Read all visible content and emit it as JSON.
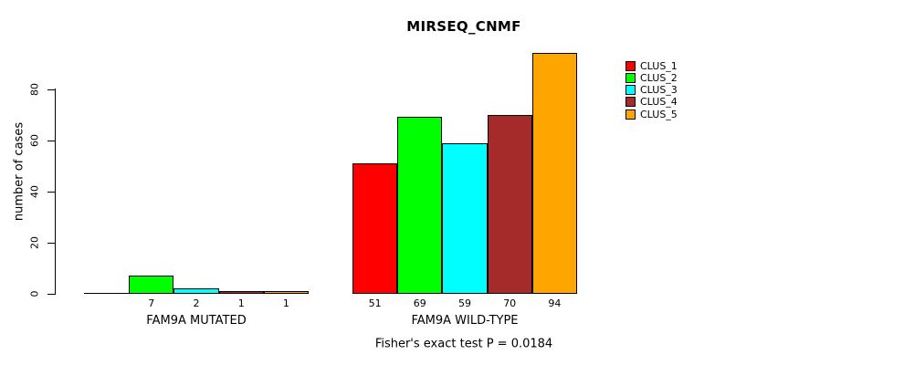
{
  "chart_data": {
    "type": "bar",
    "title": "MIRSEQ_CNMF",
    "subtitle": "Fisher's exact test P = 0.0184",
    "xlabel": "",
    "ylabel": "number of cases",
    "ylim": [
      0,
      94
    ],
    "yticks": [
      0,
      20,
      40,
      60,
      80
    ],
    "grid": false,
    "legend_position": "top-right",
    "categories": [
      "FAM9A MUTATED",
      "FAM9A WILD-TYPE"
    ],
    "series": [
      {
        "name": "CLUS_1",
        "color": "#FF0000",
        "values": [
          0,
          51
        ]
      },
      {
        "name": "CLUS_2",
        "color": "#00FF00",
        "values": [
          7,
          69
        ]
      },
      {
        "name": "CLUS_3",
        "color": "#00FFFF",
        "values": [
          2,
          59
        ]
      },
      {
        "name": "CLUS_4",
        "color": "#A52A2A",
        "values": [
          1,
          70
        ]
      },
      {
        "name": "CLUS_5",
        "color": "#FFA500",
        "values": [
          1,
          94
        ]
      }
    ],
    "bar_value_labels_shown": true,
    "zero_value_bars_unlabeled": true,
    "bar_border_color": "#000000",
    "background_color": "#FFFFFF"
  }
}
